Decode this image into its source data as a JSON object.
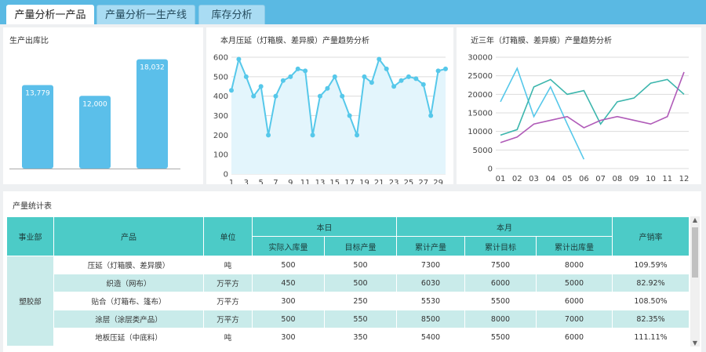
{
  "tabs": [
    {
      "label": "产量分析一产品",
      "active": true
    },
    {
      "label": "产量分析一生产线",
      "active": false
    },
    {
      "label": "库存分析",
      "active": false
    }
  ],
  "panel_bar": {
    "title": "生产出库比"
  },
  "panel_line1": {
    "title": "本月压延（灯箱膜、差异膜）产量趋势分析"
  },
  "panel_line2": {
    "title": "近三年（灯箱膜、差异膜）产量趋势分析"
  },
  "chart_data": [
    {
      "type": "bar",
      "values": [
        13779,
        12000,
        18032
      ],
      "data_labels": [
        "13,779",
        "12,000",
        "18,032"
      ],
      "color": "#5bbfea"
    },
    {
      "type": "area",
      "x": [
        1,
        2,
        3,
        4,
        5,
        6,
        7,
        8,
        9,
        10,
        11,
        12,
        13,
        14,
        15,
        16,
        17,
        18,
        19,
        20,
        21,
        22,
        23,
        24,
        25,
        26,
        27,
        28,
        29,
        30
      ],
      "x_tick_labels": [
        "1",
        "3",
        "5",
        "7",
        "9",
        "11",
        "13",
        "15",
        "17",
        "19",
        "21",
        "23",
        "25",
        "27",
        "29"
      ],
      "y_tick_labels": [
        "0",
        "100",
        "200",
        "300",
        "400",
        "500",
        "600"
      ],
      "ylim": [
        0,
        600
      ],
      "grid": true,
      "series": [
        {
          "values": [
            430,
            590,
            500,
            400,
            450,
            200,
            400,
            480,
            500,
            540,
            530,
            200,
            400,
            440,
            500,
            400,
            300,
            200,
            500,
            470,
            590,
            540,
            450,
            480,
            500,
            490,
            460,
            300,
            530,
            540
          ]
        }
      ],
      "color": "#56c8ea",
      "fill": "#e3f5fc"
    },
    {
      "type": "line",
      "categories": [
        "01",
        "02",
        "03",
        "04",
        "05",
        "06",
        "07",
        "08",
        "09",
        "10",
        "11",
        "12"
      ],
      "y_tick_labels": [
        "0",
        "5000",
        "10000",
        "15000",
        "20000",
        "25000",
        "30000"
      ],
      "ylim": [
        0,
        30000
      ],
      "grid": true,
      "series": [
        {
          "color": "#56c8ea",
          "values": [
            18000,
            27000,
            14000,
            22000,
            12000,
            2500,
            null,
            null,
            null,
            null,
            null,
            null
          ]
        },
        {
          "color": "#3db6ad",
          "values": [
            9000,
            10500,
            22000,
            24000,
            20000,
            21000,
            12000,
            18000,
            19000,
            23000,
            24000,
            20000
          ]
        },
        {
          "color": "#b05bb8",
          "values": [
            7000,
            8500,
            12000,
            13000,
            14000,
            11000,
            13000,
            14000,
            13000,
            12000,
            14000,
            26000
          ]
        }
      ]
    }
  ],
  "table": {
    "title": "产量统计表",
    "headers": {
      "dept": "事业部",
      "product": "产品",
      "unit": "单位",
      "today": "本日",
      "month": "本月",
      "sales_rate": "产销率",
      "actual_in": "实际入库量",
      "target_output": "目标产量",
      "cum_output": "累计产量",
      "cum_target": "累计目标",
      "cum_out": "累计出库量"
    },
    "dept_name": "塑胶部",
    "rows": [
      {
        "product": "压延（灯箱膜、差异膜）",
        "unit": "吨",
        "actual": "500",
        "target": "500",
        "cum": "7300",
        "cum_target": "7500",
        "cum_out": "8000",
        "rate": "109.59%"
      },
      {
        "product": "织造（网布）",
        "unit": "万平方",
        "actual": "450",
        "target": "500",
        "cum": "6030",
        "cum_target": "6000",
        "cum_out": "5000",
        "rate": "82.92%"
      },
      {
        "product": "贴合（灯箱布、篷布）",
        "unit": "万平方",
        "actual": "300",
        "target": "250",
        "cum": "5530",
        "cum_target": "5500",
        "cum_out": "6000",
        "rate": "108.50%"
      },
      {
        "product": "涂层（涂层类产品）",
        "unit": "万平方",
        "actual": "500",
        "target": "550",
        "cum": "8500",
        "cum_target": "8000",
        "cum_out": "7000",
        "rate": "82.35%"
      },
      {
        "product": "地板压延（中底料）",
        "unit": "吨",
        "actual": "300",
        "target": "350",
        "cum": "5400",
        "cum_target": "5500",
        "cum_out": "6000",
        "rate": "111.11%"
      }
    ]
  }
}
